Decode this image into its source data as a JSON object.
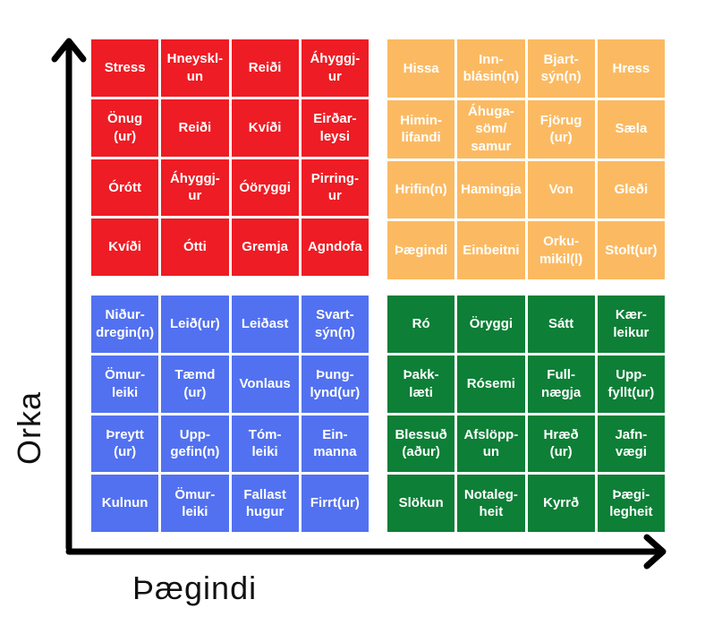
{
  "axes": {
    "y_label": "Orka",
    "x_label": "Þægindi"
  },
  "colors": {
    "red": "#ee1c24",
    "orange": "#fbba62",
    "blue": "#5271f0",
    "green": "#0d7f36",
    "axis": "#000000"
  },
  "quadrants": {
    "red": {
      "cells": [
        "Stress",
        "Hneyskl-\nun",
        "Reiði",
        "Áhyggj-\nur",
        "Önug\n(ur)",
        "Reiði",
        "Kvíði",
        "Eirðar-\nleysi",
        "Órótt",
        "Áhyggj-\nur",
        "Óöryggi",
        "Pirring-\nur",
        "Kvíði",
        "Ótti",
        "Gremja",
        "Agndofa"
      ]
    },
    "orange": {
      "cells": [
        "Hissa",
        "Inn-\nblásin(n)",
        "Bjart-\nsýn(n)",
        "Hress",
        "Himin-\nlifandi",
        "Áhuga-\nsöm/\nsamur",
        "Fjörug\n(ur)",
        "Sæla",
        "Hrifin(n)",
        "Hamingja",
        "Von",
        "Gleði",
        "Þægindi",
        "Einbeitni",
        "Orku-\nmikil(l)",
        "Stolt(ur)"
      ]
    },
    "blue": {
      "cells": [
        "Niður-\ndregin(n)",
        "Leið(ur)",
        "Leiðast",
        "Svart-\nsýn(n)",
        "Ömur-\nleiki",
        "Tæmd\n(ur)",
        "Vonlaus",
        "Þung-\nlynd(ur)",
        "Þreytt\n(ur)",
        "Upp-\ngefin(n)",
        "Tóm-\nleiki",
        "Ein-\nmanna",
        "Kulnun",
        "Ömur-\nleiki",
        "Fallast\nhugur",
        "Firrt(ur)"
      ]
    },
    "green": {
      "cells": [
        "Ró",
        "Öryggi",
        "Sátt",
        "Kær-\nleikur",
        "Þakk-\nlæti",
        "Rósemi",
        "Full-\nnægja",
        "Upp-\nfyllt(ur)",
        "Blessuð\n(aður)",
        "Afslöpp-\nun",
        "Hræð\n(ur)",
        "Jafn-\nvægi",
        "Slökun",
        "Notaleg-\nheit",
        "Kyrrð",
        "Þægi-\nlegheit"
      ]
    }
  }
}
